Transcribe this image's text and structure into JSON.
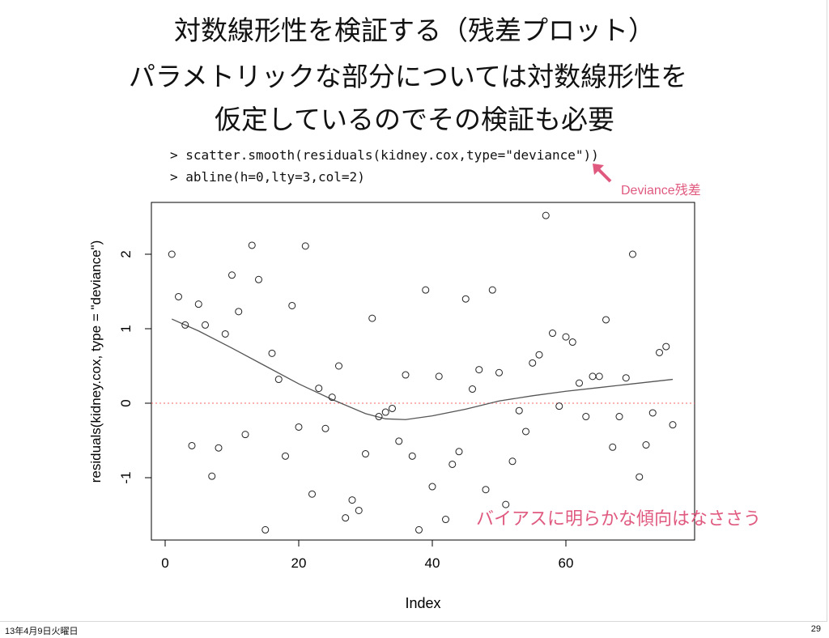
{
  "slide": {
    "title_lines": [
      "対数線形性を検証する（残差プロット）",
      "パラメトリックな部分については対数線形性を",
      "仮定しているのでその検証も必要"
    ],
    "code_lines": [
      "> scatter.smooth(residuals(kidney.cox,type=\"deviance\"))",
      "> abline(h=0,lty=3,col=2)"
    ],
    "annotation_deviance": "Deviance残差",
    "annotation_bias": "バイアスに明らかな傾向はなささう",
    "footer_date": "13年4月9日火曜日",
    "page_number": "29",
    "annotation_color": "#e05a80"
  },
  "chart_data": {
    "type": "scatter",
    "xlabel": "Index",
    "ylabel": "residuals(kidney.cox, type = \"deviance\")",
    "xlim": [
      0,
      76
    ],
    "ylim": [
      -1.75,
      2.6
    ],
    "xticks": [
      "0",
      "20",
      "40",
      "60"
    ],
    "yticks": [
      "-1",
      "0",
      "1",
      "2"
    ],
    "x": [
      1,
      2,
      3,
      4,
      5,
      6,
      7,
      8,
      9,
      10,
      11,
      12,
      13,
      14,
      15,
      16,
      17,
      18,
      19,
      20,
      21,
      22,
      23,
      24,
      25,
      26,
      27,
      28,
      29,
      30,
      31,
      32,
      33,
      34,
      35,
      36,
      37,
      38,
      39,
      40,
      41,
      42,
      43,
      44,
      45,
      46,
      47,
      48,
      49,
      50,
      51,
      52,
      53,
      54,
      55,
      56,
      57,
      58,
      59,
      60,
      61,
      62,
      63,
      64,
      65,
      66,
      67,
      68,
      69,
      70,
      71,
      72,
      73,
      74,
      75,
      76
    ],
    "y": [
      2.0,
      1.43,
      1.05,
      -0.57,
      1.33,
      1.05,
      -0.98,
      -0.6,
      0.93,
      1.72,
      1.23,
      -0.42,
      2.12,
      1.66,
      -1.7,
      0.67,
      0.32,
      -0.71,
      1.31,
      -0.32,
      2.11,
      -1.22,
      0.2,
      -0.34,
      0.08,
      0.5,
      -1.54,
      -1.3,
      -1.44,
      -0.68,
      1.14,
      -0.18,
      -0.12,
      -0.07,
      -0.51,
      0.38,
      -0.71,
      -1.7,
      1.52,
      -1.12,
      0.36,
      -1.56,
      -0.82,
      -0.65,
      1.4,
      0.19,
      0.45,
      -1.16,
      1.52,
      0.41,
      -1.36,
      -0.78,
      -0.1,
      -0.38,
      0.54,
      0.65,
      2.52,
      0.94,
      -0.04,
      0.89,
      0.82,
      0.27,
      -0.18,
      0.36,
      0.36,
      1.12,
      -0.59,
      -0.18,
      0.34,
      2.0,
      -0.99,
      -0.56,
      -0.13,
      0.68,
      0.76,
      -0.29
    ],
    "smooth": {
      "x": [
        1,
        5,
        10,
        15,
        20,
        25,
        30,
        33,
        36,
        40,
        45,
        50,
        55,
        60,
        65,
        70,
        76
      ],
      "y": [
        1.13,
        0.97,
        0.74,
        0.5,
        0.26,
        0.05,
        -0.14,
        -0.21,
        -0.22,
        -0.17,
        -0.08,
        0.03,
        0.1,
        0.16,
        0.21,
        0.26,
        0.32
      ]
    },
    "hline": {
      "y": 0,
      "color": "#ff6666",
      "lty": "dotted"
    },
    "grid": false
  }
}
